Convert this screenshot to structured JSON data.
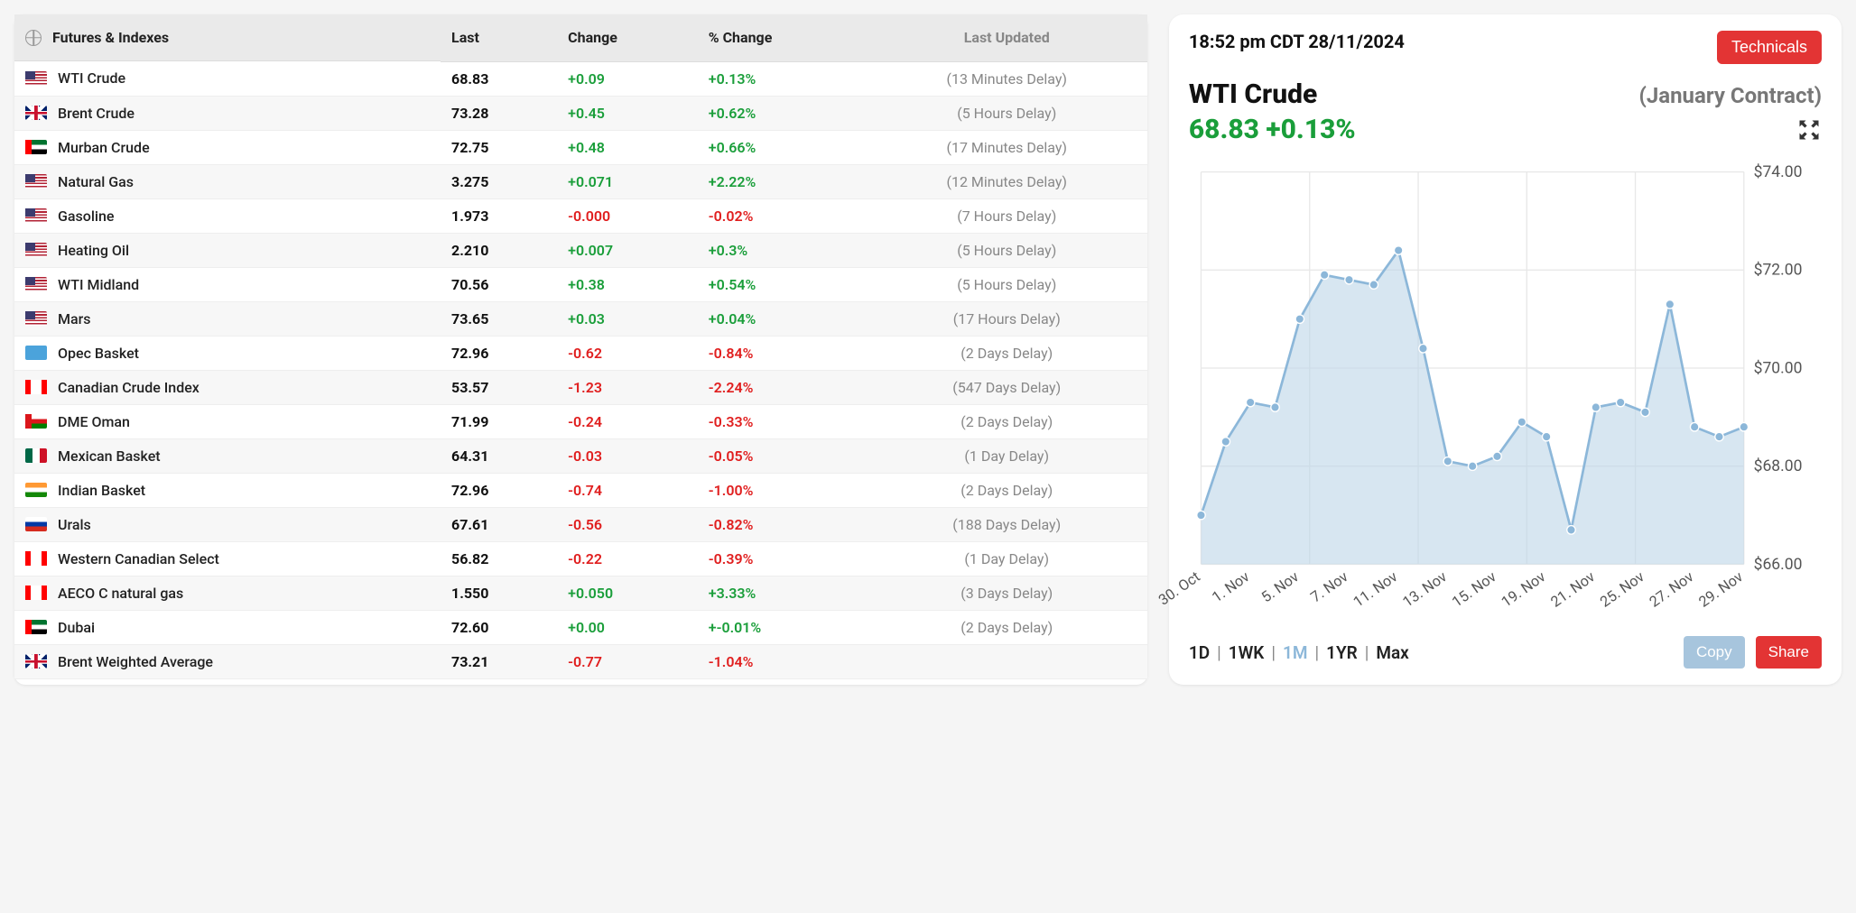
{
  "table": {
    "headers": {
      "name": "Futures & Indexes",
      "last": "Last",
      "change": "Change",
      "pct": "% Change",
      "updated": "Last Updated"
    },
    "rows": [
      {
        "flag": "us",
        "name": "WTI Crude",
        "last": "68.83",
        "change": "+0.09",
        "pct": "+0.13%",
        "dir": "pos",
        "updated": "(13 Minutes Delay)"
      },
      {
        "flag": "uk",
        "name": "Brent Crude",
        "last": "73.28",
        "change": "+0.45",
        "pct": "+0.62%",
        "dir": "pos",
        "updated": "(5 Hours Delay)"
      },
      {
        "flag": "ae",
        "name": "Murban Crude",
        "last": "72.75",
        "change": "+0.48",
        "pct": "+0.66%",
        "dir": "pos",
        "updated": "(17 Minutes Delay)"
      },
      {
        "flag": "us",
        "name": "Natural Gas",
        "last": "3.275",
        "change": "+0.071",
        "pct": "+2.22%",
        "dir": "pos",
        "updated": "(12 Minutes Delay)"
      },
      {
        "flag": "us",
        "name": "Gasoline",
        "last": "1.973",
        "change": "-0.000",
        "pct": "-0.02%",
        "dir": "neg",
        "updated": "(7 Hours Delay)"
      },
      {
        "flag": "us",
        "name": "Heating Oil",
        "last": "2.210",
        "change": "+0.007",
        "pct": "+0.3%",
        "dir": "pos",
        "updated": "(5 Hours Delay)"
      },
      {
        "flag": "us",
        "name": "WTI Midland",
        "last": "70.56",
        "change": "+0.38",
        "pct": "+0.54%",
        "dir": "pos",
        "updated": "(5 Hours Delay)"
      },
      {
        "flag": "us",
        "name": "Mars",
        "last": "73.65",
        "change": "+0.03",
        "pct": "+0.04%",
        "dir": "pos",
        "updated": "(17 Hours Delay)"
      },
      {
        "flag": "opec",
        "name": "Opec Basket",
        "last": "72.96",
        "change": "-0.62",
        "pct": "-0.84%",
        "dir": "neg",
        "updated": "(2 Days Delay)"
      },
      {
        "flag": "ca",
        "name": "Canadian Crude Index",
        "last": "53.57",
        "change": "-1.23",
        "pct": "-2.24%",
        "dir": "neg",
        "updated": "(547 Days Delay)"
      },
      {
        "flag": "om",
        "name": "DME Oman",
        "last": "71.99",
        "change": "-0.24",
        "pct": "-0.33%",
        "dir": "neg",
        "updated": "(2 Days Delay)"
      },
      {
        "flag": "mx",
        "name": "Mexican Basket",
        "last": "64.31",
        "change": "-0.03",
        "pct": "-0.05%",
        "dir": "neg",
        "updated": "(1 Day Delay)"
      },
      {
        "flag": "in",
        "name": "Indian Basket",
        "last": "72.96",
        "change": "-0.74",
        "pct": "-1.00%",
        "dir": "neg",
        "updated": "(2 Days Delay)"
      },
      {
        "flag": "ru",
        "name": "Urals",
        "last": "67.61",
        "change": "-0.56",
        "pct": "-0.82%",
        "dir": "neg",
        "updated": "(188 Days Delay)"
      },
      {
        "flag": "ca",
        "name": "Western Canadian Select",
        "last": "56.82",
        "change": "-0.22",
        "pct": "-0.39%",
        "dir": "neg",
        "updated": "(1 Day Delay)"
      },
      {
        "flag": "ca",
        "name": "AECO C natural gas",
        "last": "1.550",
        "change": "+0.050",
        "pct": "+3.33%",
        "dir": "pos",
        "updated": "(3 Days Delay)"
      },
      {
        "flag": "ae",
        "name": "Dubai",
        "last": "72.60",
        "change": "+0.00",
        "pct": "+-0.01%",
        "dir": "pos",
        "updated": "(2 Days Delay)"
      },
      {
        "flag": "uk",
        "name": "Brent Weighted Average",
        "last": "73.21",
        "change": "-0.77",
        "pct": "-1.04%",
        "dir": "neg",
        "updated": ""
      }
    ]
  },
  "chart": {
    "timestamp": "18:52 pm CDT 28/11/2024",
    "technicals_label": "Technicals",
    "title": "WTI Crude",
    "contract": "(January Contract)",
    "price": "68.83 +0.13%",
    "type": "area",
    "line_color": "#8cb7d9",
    "fill_color": "#bcd5e8",
    "marker_color": "#8cb7d9",
    "grid_color": "#e8e8e8",
    "background": "#ffffff",
    "ylim": [
      66,
      74
    ],
    "ytick_step": 2,
    "ytick_labels": [
      "$66.00",
      "$68.00",
      "$70.00",
      "$72.00",
      "$74.00"
    ],
    "x_labels": [
      "30. Oct",
      "1. Nov",
      "5. Nov",
      "7. Nov",
      "11. Nov",
      "13. Nov",
      "15. Nov",
      "19. Nov",
      "21. Nov",
      "25. Nov",
      "27. Nov",
      "29. Nov"
    ],
    "series": [
      67.0,
      68.5,
      69.3,
      69.2,
      71.0,
      71.9,
      71.8,
      71.7,
      72.4,
      70.4,
      68.1,
      68.0,
      68.2,
      68.9,
      68.6,
      66.7,
      69.2,
      69.3,
      69.1,
      71.3,
      68.8,
      68.6,
      68.8
    ],
    "timeframes": {
      "d": "1D",
      "w": "1WK",
      "m": "1M",
      "y": "1YR",
      "max": "Max",
      "active": "m"
    },
    "copy_label": "Copy",
    "share_label": "Share"
  }
}
